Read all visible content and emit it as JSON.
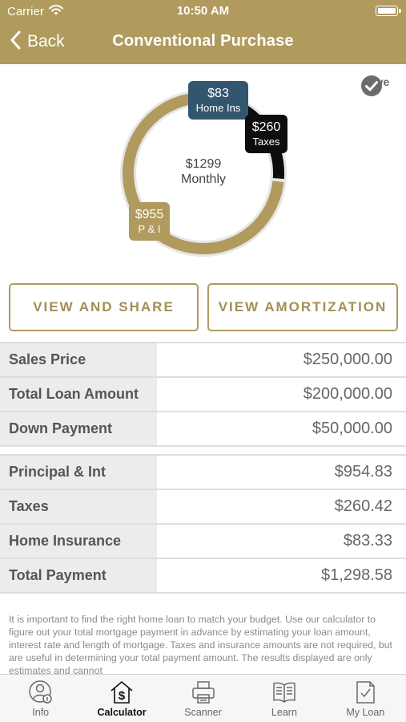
{
  "status_bar": {
    "carrier": "Carrier",
    "time": "10:50 AM"
  },
  "nav": {
    "back_label": "Back",
    "title": "Conventional Purchase"
  },
  "chart": {
    "center_amount": "$1299",
    "center_label": "Monthly",
    "segments": [
      {
        "amount": "$955",
        "label": "P & I",
        "value": 955,
        "color": "#b09a5d"
      },
      {
        "amount": "$260",
        "label": "Taxes",
        "value": 260,
        "color": "#0d0d0d"
      },
      {
        "amount": "$83",
        "label": "Home Ins",
        "value": 83,
        "color": "#33566f"
      }
    ]
  },
  "save_label": "Save",
  "buttons": {
    "share": "VIEW AND SHARE",
    "amortization": "VIEW AMORTIZATION"
  },
  "loan_table": [
    {
      "label": "Sales Price",
      "value": "$250,000.00"
    },
    {
      "label": "Total Loan Amount",
      "value": "$200,000.00"
    },
    {
      "label": "Down Payment",
      "value": "$50,000.00"
    }
  ],
  "payment_table": [
    {
      "label": "Principal & Int",
      "value": "$954.83"
    },
    {
      "label": "Taxes",
      "value": "$260.42"
    },
    {
      "label": "Home Insurance",
      "value": "$83.33"
    },
    {
      "label": "Total Payment",
      "value": "$1,298.58"
    }
  ],
  "disclaimer": "It is important to find the right home loan to match your budget. Use our calculator to figure out your total mortgage payment in advance by estimating your loan amount, interest rate and length of mortgage. Taxes and insurance amounts are not required, but are useful in determining your total payment amount.  The results displayed are only estimates and cannot",
  "tabs": [
    {
      "label": "Info",
      "icon": "person-info-icon"
    },
    {
      "label": "Calculator",
      "icon": "house-dollar-icon",
      "active": true
    },
    {
      "label": "Scanner",
      "icon": "printer-icon"
    },
    {
      "label": "Learn",
      "icon": "book-icon"
    },
    {
      "label": "My Loan",
      "icon": "document-check-icon"
    }
  ],
  "colors": {
    "accent": "#b09a5d",
    "home_ins": "#33566f",
    "taxes": "#0d0d0d"
  }
}
